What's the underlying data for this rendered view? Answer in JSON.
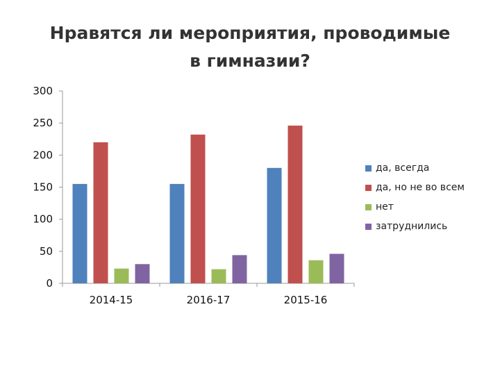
{
  "chart_data": {
    "type": "bar",
    "title": "Нравятся ли мероприятия, проводимые в гимназии?",
    "categories": [
      "2014-15",
      "2016-17",
      "2015-16"
    ],
    "series": [
      {
        "name": "да, всегда",
        "color": "#4f81bd",
        "values": [
          155,
          155,
          180
        ]
      },
      {
        "name": "да, но не во всем",
        "color": "#c0504d",
        "values": [
          220,
          232,
          246
        ]
      },
      {
        "name": "нет",
        "color": "#9bbb59",
        "values": [
          23,
          22,
          36
        ]
      },
      {
        "name": "затруднились",
        "color": "#8064a2",
        "values": [
          30,
          44,
          46
        ]
      }
    ],
    "ylim": [
      0,
      300
    ],
    "yticks": [
      "300",
      "250",
      "200",
      "150",
      "100",
      "50",
      "0"
    ],
    "grid": false,
    "legend_position": "right"
  }
}
